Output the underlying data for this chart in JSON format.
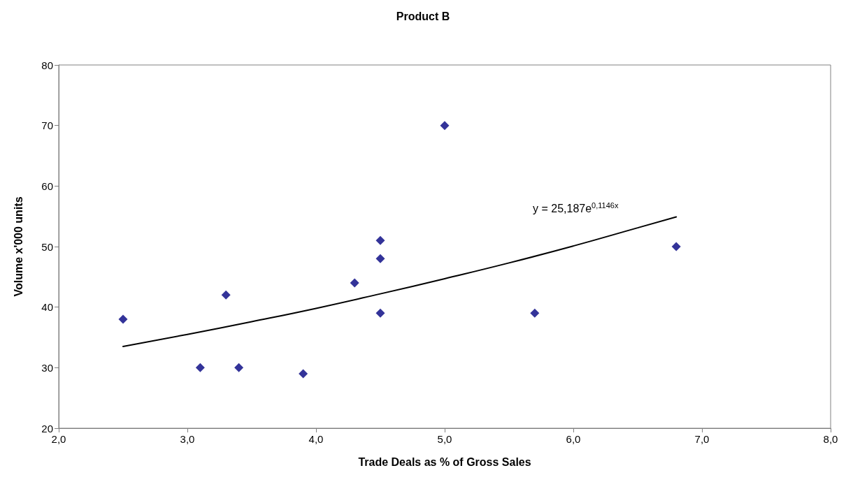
{
  "chart_data": {
    "type": "scatter",
    "title": "Product B",
    "xlabel": "Trade Deals as % of Gross Sales",
    "ylabel": "Volume x'000 units",
    "x": [
      2.5,
      3.1,
      3.3,
      3.4,
      3.9,
      4.3,
      4.5,
      4.5,
      4.5,
      5.0,
      5.7,
      6.8
    ],
    "series": [
      {
        "color": "#000080",
        "marker": "diamond",
        "values": [
          38,
          30,
          42,
          30,
          29,
          44,
          51,
          48,
          39,
          70,
          39,
          50
        ]
      },
      {
        "type": "line",
        "color": "#000000",
        "marker": "none",
        "line_style": "solid",
        "x": [
          2.5,
          3.0,
          3.5,
          4.0,
          4.5,
          5.0,
          5.5,
          6.0,
          6.5,
          6.8
        ],
        "values": [
          33.5,
          35.5,
          37.6,
          39.8,
          42.2,
          44.7,
          47.3,
          50.1,
          53.1,
          54.9
        ]
      }
    ],
    "annotations": [
      "y = 25,187e$^{0,1146x}$"
    ],
    "xlim": [
      2,
      8
    ],
    "xticks": [
      {
        "value": 2,
        "label": "2,0"
      },
      {
        "value": 3,
        "label": "3,0"
      },
      {
        "value": 4,
        "label": "4,0"
      },
      {
        "value": 5,
        "label": "5,0"
      },
      {
        "value": 6,
        "label": "6,0"
      },
      {
        "value": 7,
        "label": "7,0"
      },
      {
        "value": 8,
        "label": "8,0"
      }
    ],
    "ylim": [
      20,
      80
    ],
    "yticks": [
      20,
      30,
      40,
      50,
      60,
      70,
      80
    ],
    "grid": false
  }
}
